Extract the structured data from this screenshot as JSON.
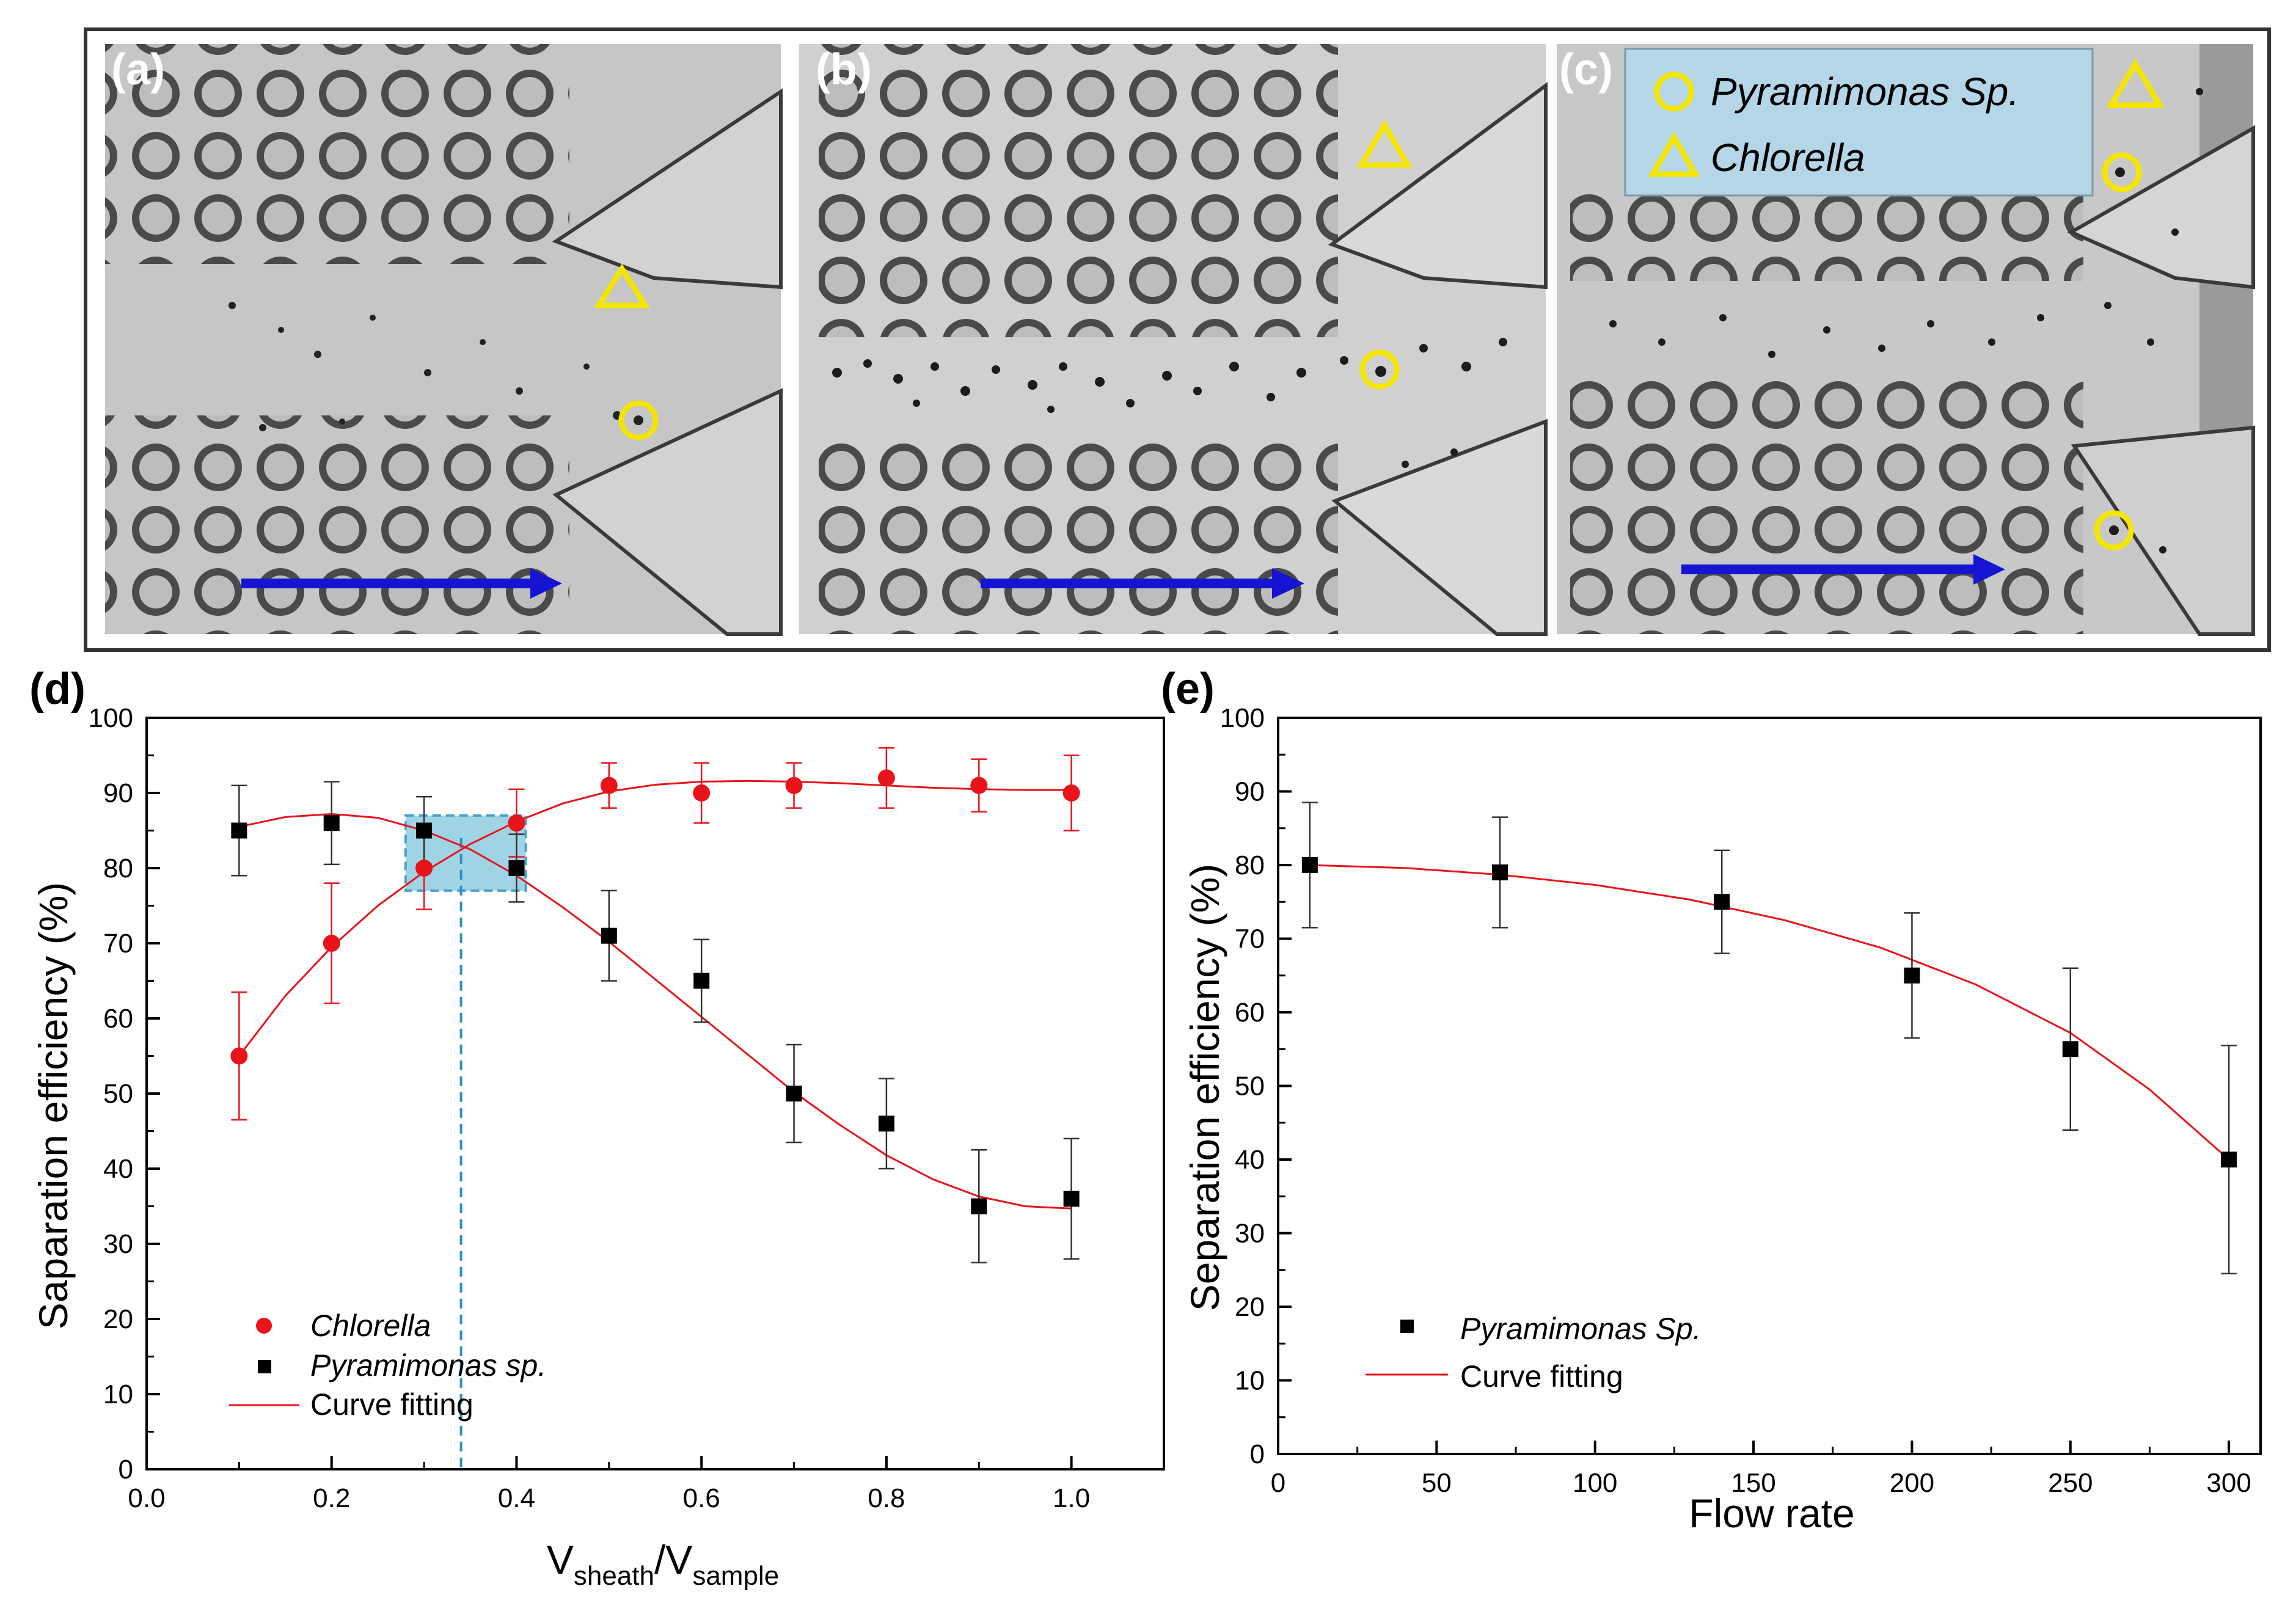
{
  "photos": {
    "labels": [
      "(a)",
      "(b)",
      "(c)"
    ],
    "legend": {
      "circle_label": "Pyramimonas Sp.",
      "triangle_label": "Chlorella"
    },
    "colors": {
      "marker": "#f5e600",
      "arrow": "#1414d2",
      "legend_bg": "#b4d6e6"
    }
  },
  "chart_data": [
    {
      "panel_label": "(d)",
      "type": "scatter",
      "xlabel_main": "V",
      "xlabel_sub1": "sheath",
      "xlabel_slash": "/V",
      "xlabel_sub2": "sample",
      "ylabel": "Saparation efficiency (%)",
      "xlim": [
        0.0,
        1.1
      ],
      "ylim": [
        0,
        100
      ],
      "xticks": [
        0.0,
        0.2,
        0.4,
        0.6,
        0.8,
        1.0
      ],
      "xtick_labels": [
        "0.0",
        "0.2",
        "0.4",
        "0.6",
        "0.8",
        "1.0"
      ],
      "yticks": [
        0,
        10,
        20,
        30,
        40,
        50,
        60,
        70,
        80,
        90,
        100
      ],
      "ytick_labels": [
        "0",
        "10",
        "20",
        "30",
        "40",
        "50",
        "60",
        "70",
        "80",
        "90",
        "100"
      ],
      "legend_position": "lower-left",
      "series": [
        {
          "name": "Chlorella",
          "marker": "circle",
          "color": "#e8141a",
          "x": [
            0.1,
            0.2,
            0.3,
            0.4,
            0.5,
            0.6,
            0.7,
            0.8,
            0.9,
            1.0
          ],
          "y": [
            55,
            70,
            80,
            86,
            91,
            90,
            91,
            92,
            91,
            90
          ],
          "err": [
            8.5,
            8,
            5.5,
            4.5,
            3,
            4,
            3,
            4,
            3.5,
            5
          ],
          "fit": [
            [
              0.1,
              55
            ],
            [
              0.15,
              63
            ],
            [
              0.2,
              69.5
            ],
            [
              0.25,
              75
            ],
            [
              0.3,
              79.5
            ],
            [
              0.35,
              83.2
            ],
            [
              0.4,
              86.2
            ],
            [
              0.45,
              88.6
            ],
            [
              0.5,
              90.2
            ],
            [
              0.55,
              91.1
            ],
            [
              0.6,
              91.5
            ],
            [
              0.65,
              91.6
            ],
            [
              0.7,
              91.5
            ],
            [
              0.75,
              91.3
            ],
            [
              0.8,
              91
            ],
            [
              0.85,
              90.7
            ],
            [
              0.9,
              90.5
            ],
            [
              0.95,
              90.4
            ],
            [
              1.0,
              90.4
            ]
          ]
        },
        {
          "name": "Pyramimonas sp.",
          "marker": "square",
          "color": "#000000",
          "x": [
            0.1,
            0.2,
            0.3,
            0.4,
            0.5,
            0.6,
            0.7,
            0.8,
            0.9,
            1.0
          ],
          "y": [
            85,
            86,
            85,
            80,
            71,
            65,
            50,
            46,
            35,
            36
          ],
          "err": [
            6,
            5.5,
            4.5,
            4.5,
            6,
            5.5,
            6.5,
            6,
            7.5,
            8
          ],
          "fit": [
            [
              0.1,
              85.5
            ],
            [
              0.15,
              86.8
            ],
            [
              0.2,
              87.2
            ],
            [
              0.25,
              86.7
            ],
            [
              0.3,
              85
            ],
            [
              0.35,
              82.5
            ],
            [
              0.4,
              79
            ],
            [
              0.45,
              74.8
            ],
            [
              0.5,
              70.2
            ],
            [
              0.55,
              65.2
            ],
            [
              0.6,
              60.2
            ],
            [
              0.65,
              55.2
            ],
            [
              0.7,
              50.2
            ],
            [
              0.75,
              45.8
            ],
            [
              0.8,
              41.8
            ],
            [
              0.85,
              38.6
            ],
            [
              0.9,
              36.3
            ],
            [
              0.95,
              35
            ],
            [
              1.0,
              34.7
            ]
          ]
        }
      ],
      "fit_label": "Curve fitting",
      "fit_color": "#e8141a",
      "highlight": {
        "x_range": [
          0.28,
          0.41
        ],
        "y_range": [
          77,
          87
        ],
        "color": "#7fc6dc",
        "dashed_line_x": 0.34
      }
    },
    {
      "panel_label": "(e)",
      "type": "scatter",
      "xlabel": "Flow rate",
      "ylabel": "Separation efficiency (%)",
      "xlim": [
        0,
        310
      ],
      "ylim": [
        0,
        100
      ],
      "xticks": [
        0,
        50,
        100,
        150,
        200,
        250,
        300
      ],
      "xtick_labels": [
        "0",
        "50",
        "100",
        "150",
        "200",
        "250",
        "300"
      ],
      "yticks": [
        0,
        10,
        20,
        30,
        40,
        50,
        60,
        70,
        80,
        90,
        100
      ],
      "ytick_labels": [
        "0",
        "10",
        "20",
        "30",
        "40",
        "50",
        "60",
        "70",
        "80",
        "90",
        "100"
      ],
      "legend_position": "lower-left",
      "series": [
        {
          "name": "Pyramimonas Sp.",
          "marker": "square",
          "color": "#000000",
          "x": [
            10,
            70,
            140,
            200,
            250,
            300
          ],
          "y": [
            80,
            79,
            75,
            65,
            55,
            40
          ],
          "err": [
            8.5,
            7.5,
            7,
            8.5,
            11,
            15.5
          ],
          "fit": [
            [
              10,
              80
            ],
            [
              40,
              79.6
            ],
            [
              70,
              78.7
            ],
            [
              100,
              77.3
            ],
            [
              130,
              75.3
            ],
            [
              160,
              72.5
            ],
            [
              190,
              68.8
            ],
            [
              220,
              63.8
            ],
            [
              250,
              57.2
            ],
            [
              275,
              49.5
            ],
            [
              300,
              40
            ]
          ]
        }
      ],
      "fit_label": "Curve fitting",
      "fit_color": "#e8141a"
    }
  ]
}
